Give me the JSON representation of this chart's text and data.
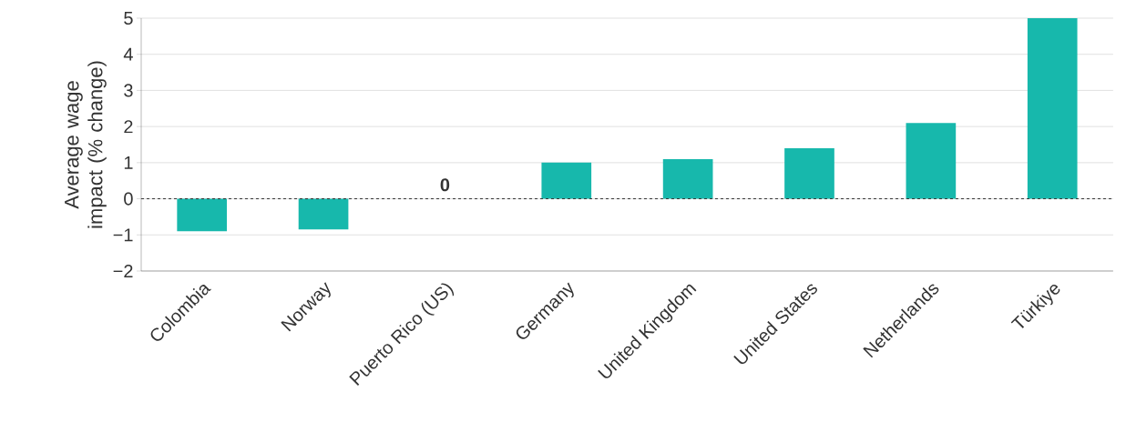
{
  "chart_data": {
    "type": "bar",
    "ylabel": "Average wage impact (% change)",
    "categories": [
      "Colombia",
      "Norway",
      "Puerto Rico (US)",
      "Germany",
      "United Kingdom",
      "United States",
      "Netherlands",
      "Türkiye"
    ],
    "values": [
      -0.9,
      -0.85,
      0,
      1.0,
      1.1,
      1.4,
      2.1,
      5
    ],
    "value_labels": [
      null,
      null,
      "0",
      null,
      null,
      null,
      null,
      null
    ],
    "color": "#17b8ac",
    "ylim": [
      -2,
      5
    ],
    "yticks": [
      {
        "value": -2,
        "label": "−2"
      },
      {
        "value": -1,
        "label": "−1"
      },
      0,
      1,
      2,
      3,
      4,
      5
    ],
    "ref_lines": [
      {
        "axis": "y",
        "value": 0,
        "color": "#333333",
        "line_style": "dashed"
      }
    ],
    "grid": "y"
  }
}
